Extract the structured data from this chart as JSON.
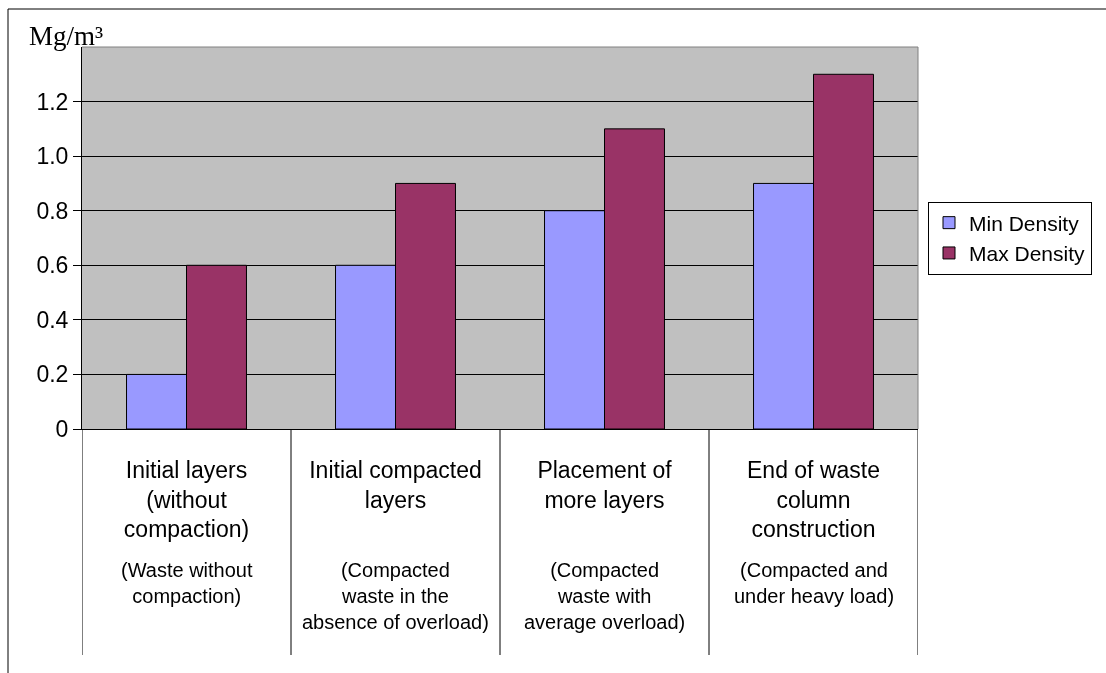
{
  "chart_data": {
    "type": "bar",
    "ylabel": "Mg/m³",
    "categories": [
      "Initial layers\n(without\ncompaction)",
      "Initial compacted\nlayers",
      "Placement of\nmore layers",
      "End of waste\ncolumn\nconstruction"
    ],
    "series": [
      {
        "name": "Min Density",
        "color": "#9999ff",
        "values": [
          0.2,
          0.6,
          0.8,
          0.9
        ]
      },
      {
        "name": "Max Density",
        "color": "#993366",
        "values": [
          0.6,
          0.9,
          1.1,
          1.3
        ]
      }
    ],
    "ylim": [
      0,
      1.4
    ],
    "yticks": [
      0,
      0.2,
      0.4,
      0.6,
      0.8,
      {
        "value": 1,
        "label": "1.0"
      },
      1.2
    ],
    "grid": "y",
    "legend": "right",
    "annotations": [
      "(Waste without\ncompaction)",
      "(Compacted\nwaste in the\nabsence of overload)",
      "(Compacted\nwaste with\naverage overload)",
      "(Compacted and\nunder heavy load)"
    ]
  }
}
